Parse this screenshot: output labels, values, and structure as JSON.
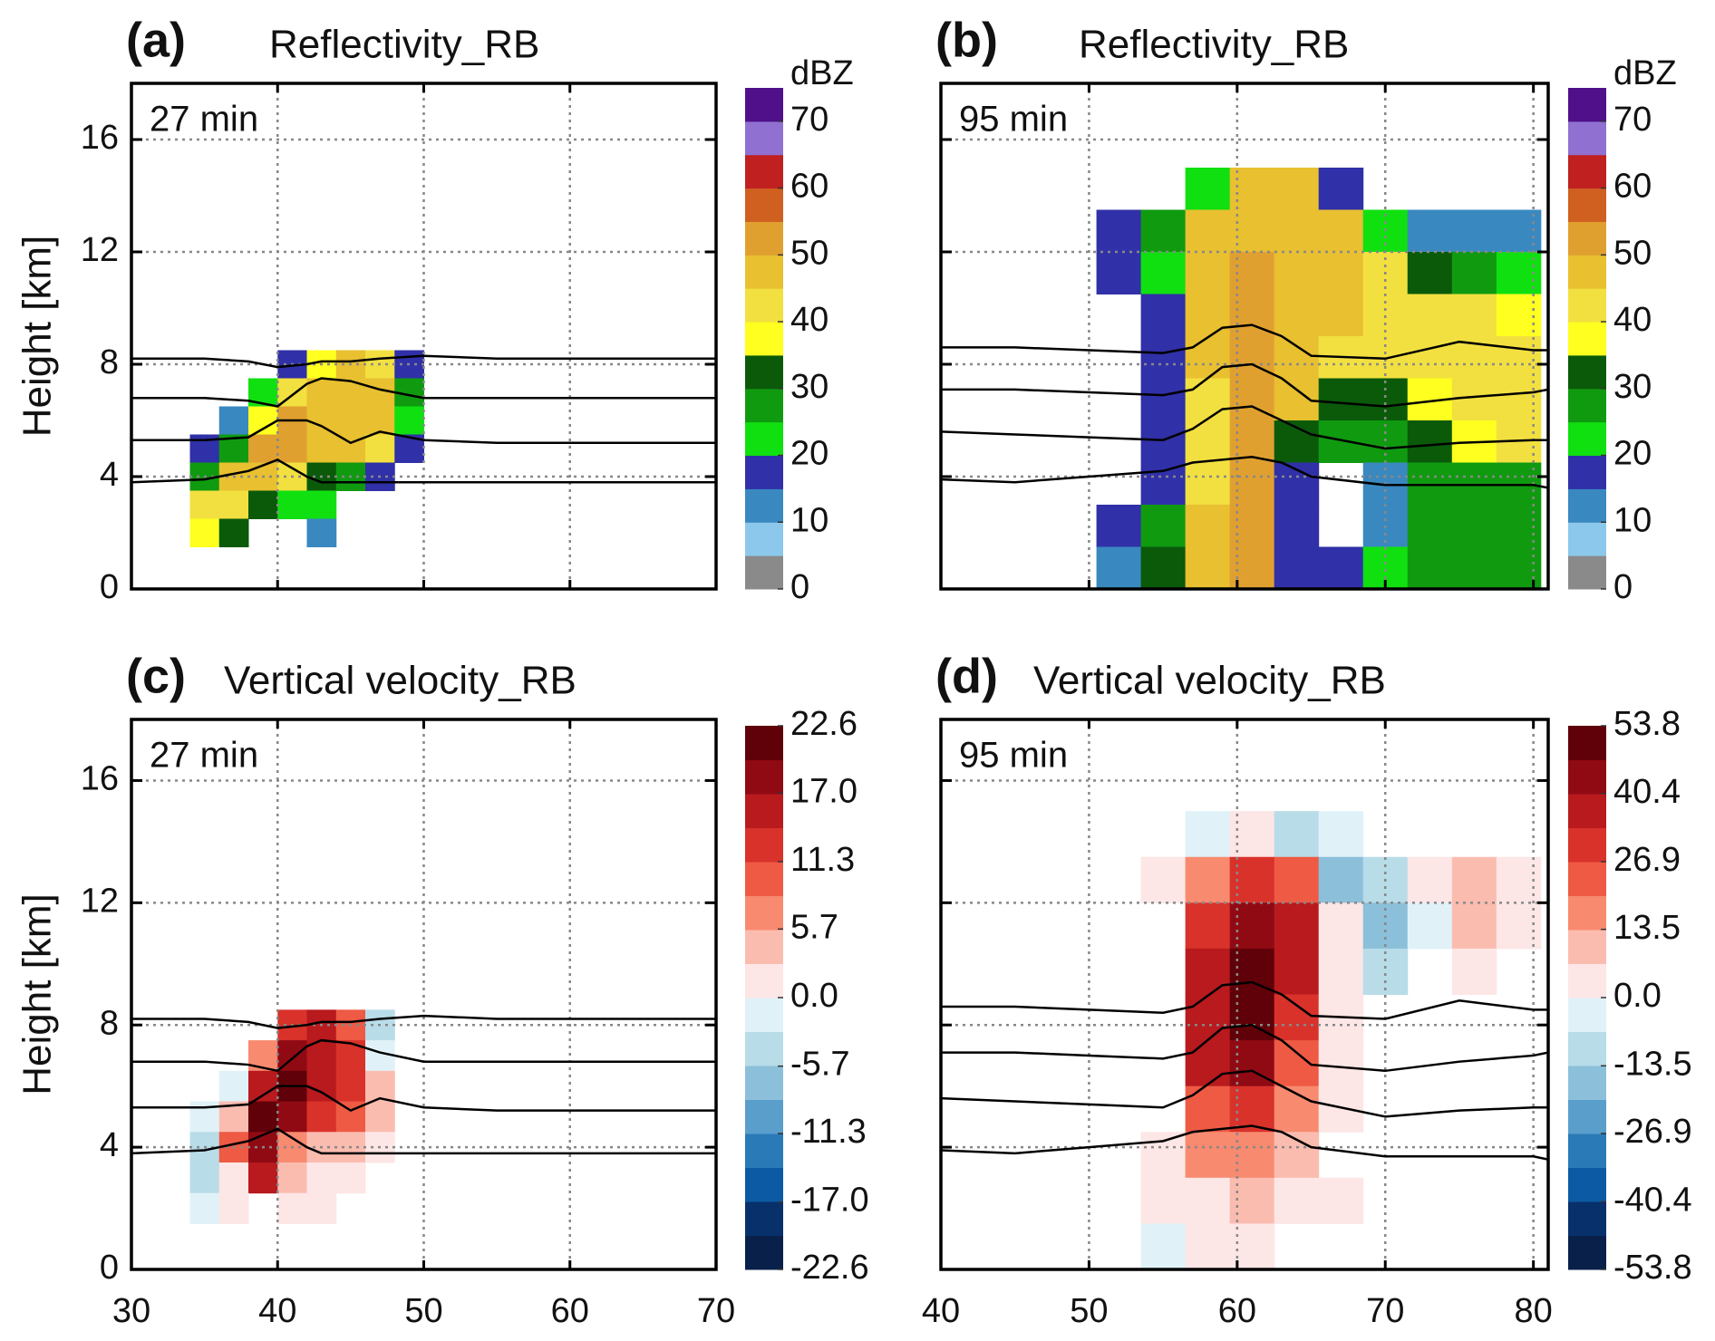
{
  "chart_data": [
    {
      "type": "heatmap",
      "panel_label": "(a)",
      "title": "Reflectivity_RB",
      "annotation": "27 min",
      "ylabel": "Height [km]",
      "colorbar_label": "dBZ",
      "xlim": [
        30,
        70
      ],
      "xticks": [
        30,
        40,
        50,
        60,
        70
      ],
      "show_xtick_labels": false,
      "ylim": [
        0,
        18
      ],
      "yticks": [
        0,
        4,
        8,
        12,
        16
      ],
      "show_ytick_labels": true,
      "grid": true,
      "zlim": [
        0,
        75
      ],
      "zticks": [
        0,
        10,
        20,
        30,
        40,
        50,
        60,
        70
      ],
      "colors": [
        "#8a8a8a",
        "#8cc8ec",
        "#3a88c0",
        "#3030a8",
        "#10e010",
        "#109a10",
        "#0a5a0a",
        "#ffff20",
        "#f2e040",
        "#e8c030",
        "#e0a030",
        "#d06020",
        "#c02020",
        "#9070d0",
        "#50108a"
      ],
      "grid_x": [
        35,
        37,
        39,
        41,
        43,
        45,
        47,
        49
      ],
      "grid_y": [
        8,
        7,
        6,
        5,
        4,
        3,
        2
      ],
      "z": [
        [
          null,
          null,
          null,
          15,
          35,
          45,
          40,
          15
        ],
        [
          null,
          null,
          20,
          40,
          48,
          48,
          45,
          25
        ],
        [
          null,
          10,
          35,
          50,
          48,
          48,
          45,
          20
        ],
        [
          15,
          25,
          50,
          52,
          48,
          46,
          40,
          15
        ],
        [
          25,
          45,
          48,
          40,
          30,
          25,
          15,
          null
        ],
        [
          40,
          40,
          30,
          20,
          20,
          null,
          null,
          null
        ],
        [
          35,
          30,
          null,
          null,
          10,
          null,
          null,
          null
        ]
      ],
      "x": [
        30,
        35,
        38,
        40,
        42,
        43,
        45,
        47,
        50,
        55,
        70
      ],
      "series": [
        {
          "color": "#000000",
          "values": [
            8.2,
            8.2,
            8.1,
            7.9,
            8.0,
            8.1,
            8.1,
            8.2,
            8.3,
            8.2,
            8.2
          ]
        },
        {
          "color": "#000000",
          "values": [
            6.8,
            6.8,
            6.7,
            6.5,
            7.3,
            7.5,
            7.4,
            7.1,
            6.8,
            6.8,
            6.8
          ]
        },
        {
          "color": "#000000",
          "values": [
            5.3,
            5.3,
            5.4,
            6.0,
            6.0,
            5.8,
            5.2,
            5.6,
            5.3,
            5.2,
            5.2
          ]
        },
        {
          "color": "#000000",
          "values": [
            3.8,
            3.9,
            4.2,
            4.6,
            4.0,
            3.8,
            3.8,
            3.8,
            3.8,
            3.8,
            3.8
          ]
        }
      ]
    },
    {
      "type": "heatmap",
      "panel_label": "(b)",
      "title": "Reflectivity_RB",
      "annotation": "95 min",
      "colorbar_label": "dBZ",
      "xlim": [
        40,
        81
      ],
      "xticks": [
        40,
        50,
        60,
        70,
        80
      ],
      "show_xtick_labels": false,
      "ylim": [
        0,
        18
      ],
      "yticks": [
        0,
        4,
        8,
        12,
        16
      ],
      "show_ytick_labels": false,
      "grid": true,
      "zlim": [
        0,
        75
      ],
      "zticks": [
        0,
        10,
        20,
        30,
        40,
        50,
        60,
        70
      ],
      "colors": [
        "#8a8a8a",
        "#8cc8ec",
        "#3a88c0",
        "#3030a8",
        "#10e010",
        "#109a10",
        "#0a5a0a",
        "#ffff20",
        "#f2e040",
        "#e8c030",
        "#e0a030",
        "#d06020",
        "#c02020",
        "#9070d0",
        "#50108a"
      ],
      "grid_x": [
        46,
        49,
        52,
        55,
        58,
        61,
        64,
        67,
        70,
        73,
        76,
        79
      ],
      "grid_y": [
        14.25,
        12.75,
        11.25,
        9.75,
        8.25,
        6.75,
        5.25,
        3.75,
        2.25,
        0.75
      ],
      "z": [
        [
          null,
          null,
          null,
          null,
          20,
          45,
          45,
          15,
          null,
          null,
          null,
          null
        ],
        [
          null,
          null,
          15,
          25,
          45,
          48,
          48,
          45,
          20,
          10,
          10,
          10
        ],
        [
          null,
          null,
          15,
          20,
          45,
          52,
          48,
          45,
          40,
          30,
          25,
          20
        ],
        [
          null,
          null,
          null,
          15,
          45,
          52,
          48,
          45,
          42,
          40,
          40,
          38
        ],
        [
          null,
          null,
          null,
          15,
          48,
          52,
          45,
          42,
          40,
          40,
          40,
          40
        ],
        [
          null,
          null,
          null,
          15,
          42,
          52,
          45,
          30,
          30,
          35,
          40,
          40
        ],
        [
          null,
          null,
          null,
          15,
          40,
          52,
          30,
          25,
          25,
          30,
          35,
          40
        ],
        [
          null,
          null,
          null,
          15,
          40,
          52,
          15,
          null,
          10,
          25,
          25,
          25
        ],
        [
          null,
          null,
          15,
          25,
          45,
          52,
          15,
          null,
          10,
          25,
          25,
          25
        ],
        [
          null,
          null,
          10,
          30,
          45,
          52,
          15,
          15,
          20,
          25,
          25,
          25
        ]
      ],
      "x": [
        40,
        45,
        50,
        55,
        57,
        59,
        61,
        63,
        65,
        70,
        75,
        80,
        81
      ],
      "series": [
        {
          "color": "#000000",
          "values": [
            8.6,
            8.6,
            8.5,
            8.4,
            8.6,
            9.3,
            9.4,
            9.0,
            8.3,
            8.2,
            8.8,
            8.5,
            8.5
          ]
        },
        {
          "color": "#000000",
          "values": [
            7.1,
            7.1,
            7.0,
            6.9,
            7.1,
            7.9,
            8.0,
            7.5,
            6.7,
            6.5,
            6.8,
            7.0,
            7.1
          ]
        },
        {
          "color": "#000000",
          "values": [
            5.6,
            5.5,
            5.4,
            5.3,
            5.7,
            6.4,
            6.5,
            6.0,
            5.5,
            5.0,
            5.2,
            5.3,
            5.3
          ]
        },
        {
          "color": "#000000",
          "values": [
            3.9,
            3.8,
            4.0,
            4.2,
            4.5,
            4.6,
            4.7,
            4.5,
            4.0,
            3.7,
            3.7,
            3.7,
            3.6
          ]
        }
      ]
    },
    {
      "type": "heatmap",
      "panel_label": "(c)",
      "title": "Vertical velocity_RB",
      "annotation": "27 min",
      "ylabel": "Height [km]",
      "xlim": [
        30,
        70
      ],
      "xticks": [
        30,
        40,
        50,
        60,
        70
      ],
      "show_xtick_labels": true,
      "ylim": [
        0,
        18
      ],
      "yticks": [
        0,
        4,
        8,
        12,
        16
      ],
      "show_ytick_labels": true,
      "grid": true,
      "zlim": [
        -22.6,
        22.6
      ],
      "zticks": [
        -22.6,
        {
          "value": -17,
          "label": "-17.0"
        },
        -11.3,
        -5.7,
        {
          "value": 0,
          "label": "0.0"
        },
        5.7,
        11.3,
        {
          "value": 17,
          "label": "17.0"
        },
        22.6
      ],
      "colors": [
        "#08204a",
        "#08306b",
        "#0b5aa3",
        "#2a7ab8",
        "#5a9ecc",
        "#8cc0da",
        "#b8dce8",
        "#e0f2f8",
        "#fde6e6",
        "#fbbcb0",
        "#f88a70",
        "#ee5a44",
        "#d8322a",
        "#b81a1e",
        "#900a14",
        "#600008"
      ],
      "grid_x": [
        35,
        37,
        39,
        41,
        43,
        45,
        47,
        49
      ],
      "grid_y": [
        8,
        7,
        6,
        5,
        4,
        3,
        2
      ],
      "z": [
        [
          null,
          null,
          null,
          12,
          15,
          10,
          -3,
          null
        ],
        [
          null,
          null,
          8,
          18,
          15,
          12,
          -2,
          null
        ],
        [
          null,
          -2,
          15,
          20,
          15,
          12,
          5,
          null
        ],
        [
          -2,
          3,
          22,
          18,
          12,
          10,
          5,
          null
        ],
        [
          -5,
          10,
          18,
          8,
          5,
          3,
          2,
          null
        ],
        [
          -3,
          2,
          15,
          3,
          2,
          2,
          null,
          null
        ],
        [
          -1,
          2,
          null,
          2,
          2,
          null,
          null,
          null
        ]
      ],
      "x": [
        30,
        35,
        38,
        40,
        42,
        43,
        45,
        47,
        50,
        55,
        70
      ],
      "series": [
        {
          "color": "#000000",
          "values": [
            8.2,
            8.2,
            8.1,
            7.9,
            8.0,
            8.1,
            8.1,
            8.2,
            8.3,
            8.2,
            8.2
          ]
        },
        {
          "color": "#000000",
          "values": [
            6.8,
            6.8,
            6.7,
            6.5,
            7.3,
            7.5,
            7.4,
            7.1,
            6.8,
            6.8,
            6.8
          ]
        },
        {
          "color": "#000000",
          "values": [
            5.3,
            5.3,
            5.4,
            6.0,
            6.0,
            5.8,
            5.2,
            5.6,
            5.3,
            5.2,
            5.2
          ]
        },
        {
          "color": "#000000",
          "values": [
            3.8,
            3.9,
            4.2,
            4.6,
            4.0,
            3.8,
            3.8,
            3.8,
            3.8,
            3.8,
            3.8
          ]
        }
      ]
    },
    {
      "type": "heatmap",
      "panel_label": "(d)",
      "title": "Vertical velocity_RB",
      "annotation": "95 min",
      "xlim": [
        40,
        81
      ],
      "xticks": [
        40,
        50,
        60,
        70,
        80
      ],
      "show_xtick_labels": true,
      "ylim": [
        0,
        18
      ],
      "yticks": [
        0,
        4,
        8,
        12,
        16
      ],
      "show_ytick_labels": false,
      "grid": true,
      "zlim": [
        -53.8,
        53.8
      ],
      "zticks": [
        -53.8,
        -40.4,
        -26.9,
        -13.5,
        {
          "value": 0,
          "label": "0.0"
        },
        13.5,
        26.9,
        40.4,
        53.8
      ],
      "colors": [
        "#08204a",
        "#08306b",
        "#0b5aa3",
        "#2a7ab8",
        "#5a9ecc",
        "#8cc0da",
        "#b8dce8",
        "#e0f2f8",
        "#fde6e6",
        "#fbbcb0",
        "#f88a70",
        "#ee5a44",
        "#d8322a",
        "#b81a1e",
        "#900a14",
        "#600008"
      ],
      "grid_x": [
        46,
        49,
        52,
        55,
        58,
        61,
        64,
        67,
        70,
        73,
        76,
        79
      ],
      "grid_y": [
        14.25,
        12.75,
        11.25,
        9.75,
        8.25,
        6.75,
        5.25,
        3.75,
        2.25,
        0.75
      ],
      "z": [
        [
          null,
          null,
          null,
          null,
          -3,
          5,
          -8,
          -5,
          null,
          null,
          null,
          null
        ],
        [
          null,
          null,
          null,
          3,
          20,
          30,
          25,
          -15,
          -10,
          3,
          8,
          5
        ],
        [
          null,
          null,
          null,
          null,
          30,
          45,
          40,
          5,
          -20,
          -5,
          10,
          5
        ],
        [
          null,
          null,
          null,
          null,
          35,
          50,
          40,
          5,
          -10,
          null,
          5,
          null
        ],
        [
          null,
          null,
          null,
          null,
          40,
          53,
          30,
          3,
          null,
          null,
          null,
          null
        ],
        [
          null,
          null,
          null,
          null,
          35,
          45,
          25,
          5,
          null,
          null,
          null,
          null
        ],
        [
          null,
          null,
          null,
          null,
          25,
          30,
          15,
          5,
          null,
          null,
          null,
          null
        ],
        [
          null,
          null,
          null,
          3,
          20,
          20,
          10,
          null,
          null,
          null,
          null,
          null
        ],
        [
          null,
          null,
          null,
          3,
          5,
          10,
          3,
          3,
          null,
          null,
          null,
          null
        ],
        [
          null,
          null,
          null,
          -3,
          3,
          5,
          null,
          null,
          null,
          null,
          null,
          null
        ]
      ],
      "x": [
        40,
        45,
        50,
        55,
        57,
        59,
        61,
        63,
        65,
        70,
        75,
        80,
        81
      ],
      "series": [
        {
          "color": "#000000",
          "values": [
            8.6,
            8.6,
            8.5,
            8.4,
            8.6,
            9.3,
            9.4,
            9.0,
            8.3,
            8.2,
            8.8,
            8.5,
            8.5
          ]
        },
        {
          "color": "#000000",
          "values": [
            7.1,
            7.1,
            7.0,
            6.9,
            7.1,
            7.9,
            8.0,
            7.5,
            6.7,
            6.5,
            6.8,
            7.0,
            7.1
          ]
        },
        {
          "color": "#000000",
          "values": [
            5.6,
            5.5,
            5.4,
            5.3,
            5.7,
            6.4,
            6.5,
            6.0,
            5.5,
            5.0,
            5.2,
            5.3,
            5.3
          ]
        },
        {
          "color": "#000000",
          "values": [
            3.9,
            3.8,
            4.0,
            4.2,
            4.5,
            4.6,
            4.7,
            4.5,
            4.0,
            3.7,
            3.7,
            3.7,
            3.6
          ]
        }
      ]
    }
  ]
}
